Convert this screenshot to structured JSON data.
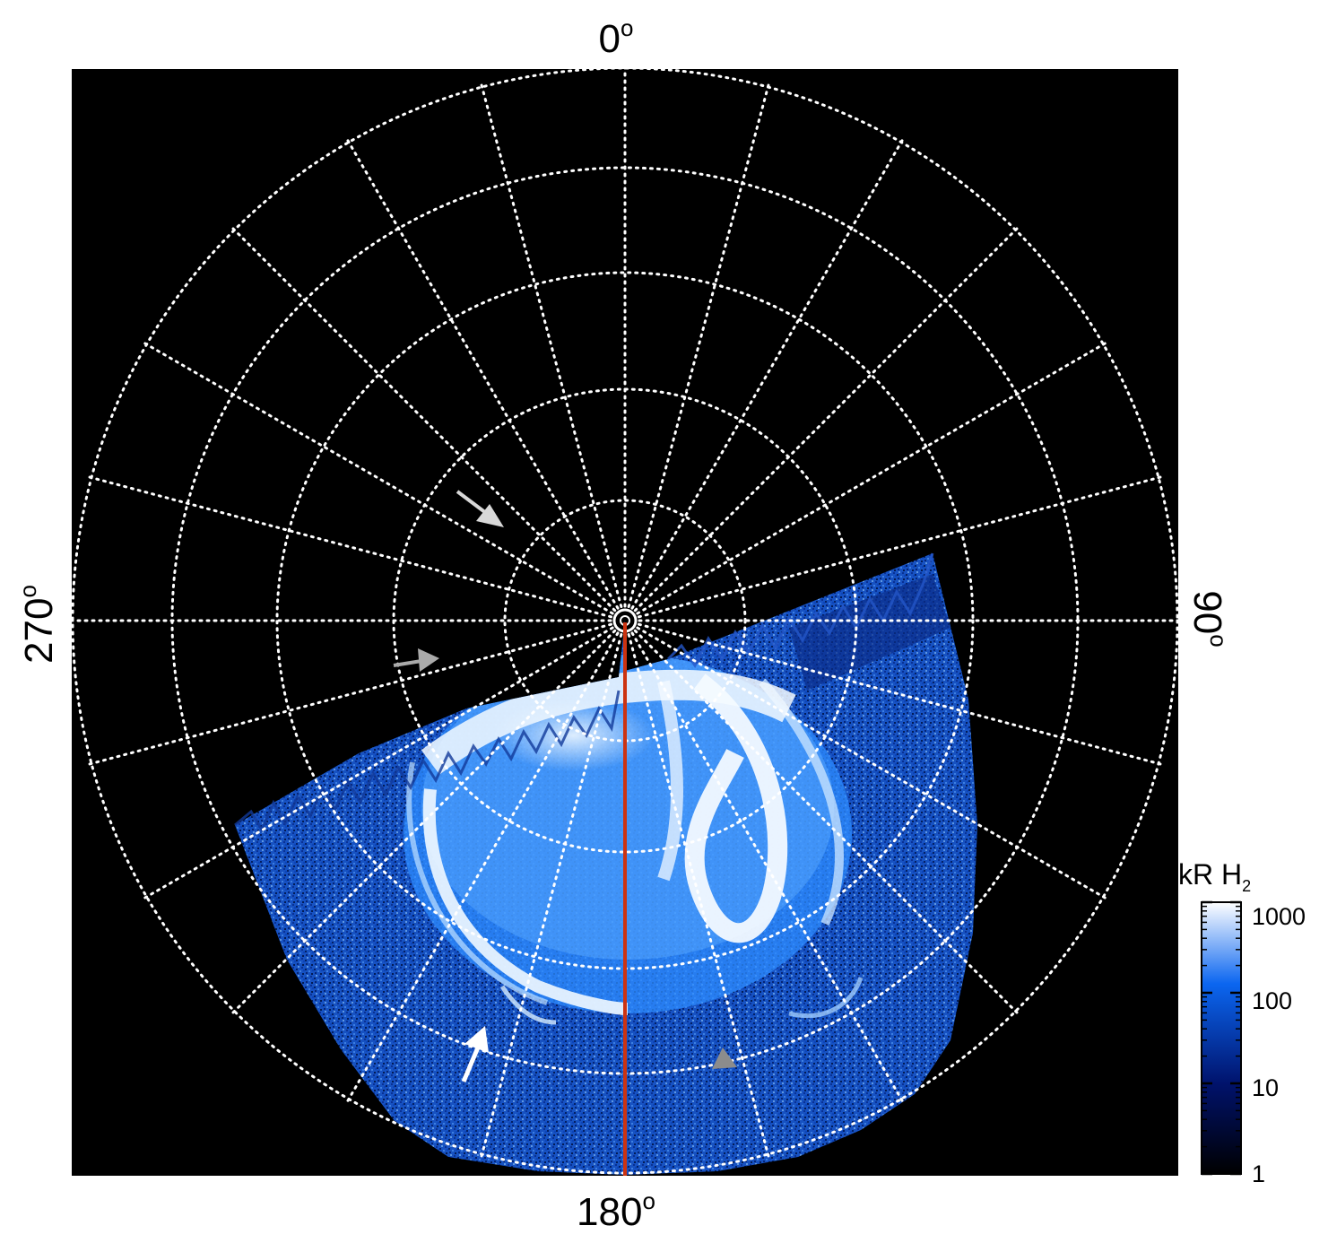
{
  "longitude_labels": {
    "top": "0",
    "bottom": "180",
    "left": "270",
    "right": "90",
    "degree_symbol": "o"
  },
  "colorbar": {
    "title_main": "kR H",
    "title_subscript": "2",
    "scale": "log",
    "range": [
      1,
      1000
    ],
    "ticks": [
      "1000",
      "100",
      "10",
      "1"
    ],
    "colors": [
      "#000000",
      "#00126b",
      "#0b66f0",
      "#ffffff"
    ]
  },
  "grid": {
    "style": "dotted",
    "color": "#ffffff",
    "meridian_spacing_deg": 15,
    "latitude_rings": 6
  },
  "annotations": {
    "meridian_line_color": "#cc3311",
    "arrow_colors": [
      "#d8d8d8",
      "#aaaaaa",
      "#ffffff",
      "#8c8c8c"
    ]
  }
}
